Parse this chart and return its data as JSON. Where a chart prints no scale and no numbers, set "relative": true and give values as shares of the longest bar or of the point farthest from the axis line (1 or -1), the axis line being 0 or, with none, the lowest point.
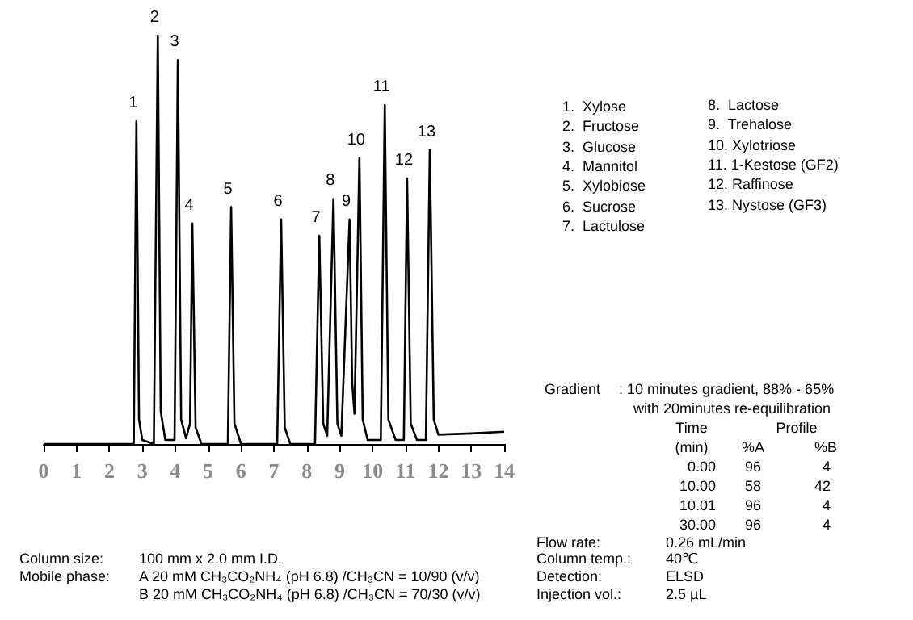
{
  "chart_data": {
    "type": "line",
    "relative": true,
    "xlim": [
      0,
      14
    ],
    "xticks": [
      0,
      1,
      2,
      3,
      4,
      5,
      6,
      7,
      8,
      9,
      10,
      11,
      12,
      13,
      14
    ],
    "marker": "none",
    "line_style": "solid",
    "tick_labels": "x",
    "series": [
      {
        "color": "#000000",
        "x": [
          0,
          2.65,
          2.74,
          2.82,
          2.9,
          3.0,
          3.35,
          3.47,
          3.56,
          3.7,
          3.98,
          4.08,
          4.18,
          4.33,
          4.45,
          4.52,
          4.62,
          4.8,
          5.6,
          5.7,
          5.8,
          6.0,
          7.1,
          7.22,
          7.33,
          7.5,
          8.25,
          8.38,
          8.5,
          8.62,
          8.81,
          8.93,
          9.05,
          9.3,
          9.38,
          9.45,
          9.6,
          9.7,
          9.85,
          10.25,
          10.37,
          10.48,
          10.7,
          10.95,
          11.05,
          11.16,
          11.35,
          11.62,
          11.74,
          11.86,
          12.0,
          13.0,
          14.0
        ],
        "values": [
          0,
          0,
          0,
          0.79,
          0.06,
          0.01,
          0,
          1.0,
          0.08,
          0.01,
          0.01,
          0.94,
          0.06,
          0.014,
          0.05,
          0.54,
          0.04,
          0,
          0,
          0.58,
          0.05,
          0,
          0,
          0.55,
          0.04,
          0,
          0,
          0.51,
          0.05,
          0.02,
          0.6,
          0.05,
          0.02,
          0.55,
          0.15,
          0.074,
          0.7,
          0.06,
          0.01,
          0.01,
          0.83,
          0.06,
          0.01,
          0.01,
          0.65,
          0.05,
          0.01,
          0.01,
          0.72,
          0.06,
          0.023,
          0.026,
          0.03
        ]
      }
    ],
    "annotations": [
      "1.  Xylose",
      "2.  Fructose",
      "3.  Glucose",
      "4.  Mannitol",
      "5.  Xylobiose",
      "6.  Sucrose",
      "7.  Lactulose",
      "8.  Lactose",
      "9.  Trehalose",
      "10. Xylotriose",
      "11. 1-Kestose (GF2)",
      "12. Raffinose",
      "13. Nystose (GF3)",
      "Gradient",
      ": 10 minutes gradient, 88% - 65%",
      "with 20minutes re-equilibration",
      "Time",
      "Profile",
      "(min)",
      "%A",
      "%B",
      "0.00",
      "96",
      "4",
      "10.00",
      "58",
      "42",
      "10.01",
      "96",
      "4",
      "30.00",
      "96",
      "4",
      "Column size:",
      "100 mm x 2.0 mm I.D.",
      "Mobile phase:",
      "A 20 mM CH₃CO₂NH₄ (pH 6.8) /CH₃CN = 10/90 (v/v)",
      "B 20 mM CH₃CO₂NH₄ (pH 6.8) /CH₃CN = 70/30 (v/v)",
      "Flow rate:",
      "0.26 mL/min",
      "Column temp.:",
      "40℃",
      "Detection:",
      "ELSD",
      "Injection vol.:",
      "2.5 µL",
      {
        "text": "1",
        "x": 2.82,
        "y": 0.79
      },
      {
        "text": "2",
        "x": 3.47,
        "y": 1.0
      },
      {
        "text": "3",
        "x": 4.08,
        "y": 0.94
      },
      {
        "text": "4",
        "x": 4.52,
        "y": 0.54
      },
      {
        "text": "5",
        "x": 5.7,
        "y": 0.58
      },
      {
        "text": "6",
        "x": 7.22,
        "y": 0.55
      },
      {
        "text": "7",
        "x": 8.38,
        "y": 0.51
      },
      {
        "text": "8",
        "x": 8.81,
        "y": 0.6
      },
      {
        "text": "9",
        "x": 9.3,
        "y": 0.55
      },
      {
        "text": "10",
        "x": 9.6,
        "y": 0.7
      },
      {
        "text": "11",
        "x": 10.37,
        "y": 0.83
      },
      {
        "text": "12",
        "x": 11.05,
        "y": 0.65
      },
      {
        "text": "13",
        "x": 11.74,
        "y": 0.72
      }
    ]
  }
}
